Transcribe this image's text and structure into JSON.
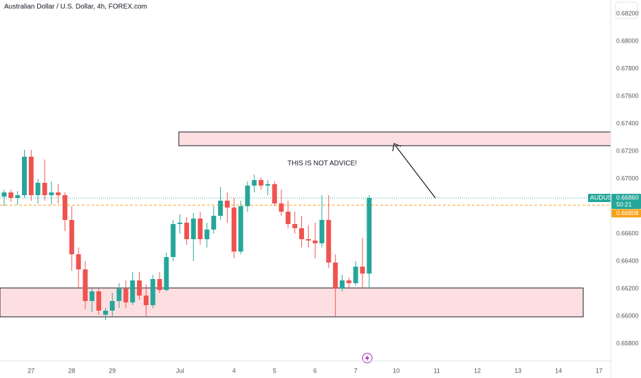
{
  "chart_data": {
    "type": "candlestick",
    "title": "Australian Dollar / U.S. Dollar, 4h, FOREX.com",
    "categories": [
      null,
      null,
      null,
      null,
      "27",
      null,
      null,
      null,
      null,
      null,
      "28",
      null,
      null,
      null,
      null,
      null,
      "29",
      null,
      null,
      null,
      null,
      null,
      null,
      null,
      null,
      null,
      "Jul",
      null,
      null,
      null,
      null,
      null,
      null,
      null,
      "4",
      null,
      null,
      null,
      null,
      null,
      "5",
      null,
      null,
      null,
      null,
      null,
      "6",
      null,
      null,
      null,
      null,
      null,
      "7",
      null,
      null,
      null,
      null,
      null,
      "10",
      null,
      null,
      null,
      null,
      null,
      "11",
      null,
      null,
      null,
      null,
      null,
      "12",
      null,
      null,
      null,
      null,
      null,
      "13",
      null,
      null,
      null,
      null,
      null,
      "14",
      null,
      null,
      null,
      null,
      null,
      "17",
      null
    ],
    "series": [
      {
        "name": "AUDUSD",
        "up_color": "#26a69a",
        "down_color": "#ef5350",
        "open": [
          0.6687,
          0.669,
          0.6686,
          0.6688,
          0.6716,
          0.6688,
          0.6697,
          0.6688,
          0.669,
          0.6688,
          0.667,
          0.6645,
          0.6634,
          0.6611,
          0.6618,
          0.6601,
          0.6604,
          0.6611,
          0.662,
          0.661,
          0.6626,
          0.6615,
          0.6608,
          0.6627,
          0.6619,
          0.6643,
          0.6667,
          0.6668,
          0.6656,
          0.6671,
          0.6656,
          0.6663,
          0.6673,
          0.6684,
          0.6679,
          0.6647,
          0.668,
          0.6695,
          0.6699,
          0.6695,
          0.6696,
          0.6682,
          0.6676,
          0.6667,
          0.6664,
          0.6656,
          0.6655,
          0.6653,
          0.667,
          0.6639,
          0.662,
          0.6626,
          0.6624,
          0.6636,
          0.6631,
          null,
          null,
          null,
          null,
          null,
          null,
          null,
          null,
          null,
          null,
          null,
          null,
          null,
          null,
          null,
          null,
          null,
          null,
          null,
          null,
          null,
          null,
          null,
          null,
          null,
          null,
          null,
          null,
          null,
          null,
          null,
          null,
          null,
          null,
          null
        ],
        "high": [
          0.6692,
          0.6692,
          0.6691,
          0.6721,
          0.6721,
          0.67,
          0.6714,
          0.6698,
          0.6696,
          0.669,
          0.668,
          0.665,
          0.664,
          0.662,
          0.662,
          0.6606,
          0.6617,
          0.6624,
          0.6626,
          0.6632,
          0.6632,
          0.6623,
          0.663,
          0.6632,
          0.6646,
          0.667,
          0.6674,
          0.6672,
          0.6675,
          0.6676,
          0.6668,
          0.668,
          0.6694,
          0.669,
          0.6686,
          0.6684,
          0.6698,
          0.6703,
          0.6701,
          0.6699,
          0.6698,
          0.6692,
          0.6684,
          0.6676,
          0.6673,
          0.6666,
          0.6668,
          0.6688,
          0.6688,
          0.6645,
          0.663,
          0.6628,
          0.664,
          0.6657,
          0.6688,
          null,
          null,
          null,
          null,
          null,
          null,
          null,
          null,
          null,
          null,
          null,
          null,
          null,
          null,
          null,
          null,
          null,
          null,
          null,
          null,
          null,
          null,
          null,
          null,
          null,
          null,
          null,
          null,
          null,
          null,
          null,
          null,
          null,
          null,
          null
        ],
        "low": [
          0.668,
          0.6683,
          0.6681,
          0.6686,
          0.6684,
          0.6682,
          0.6684,
          0.6681,
          0.6682,
          0.6662,
          0.6633,
          0.662,
          0.6605,
          0.6603,
          0.6601,
          0.6597,
          0.66,
          0.6606,
          0.6606,
          0.6608,
          0.6612,
          0.66,
          0.6606,
          0.6617,
          0.6618,
          0.664,
          0.666,
          0.6652,
          0.664,
          0.6652,
          0.665,
          0.666,
          0.667,
          0.6668,
          0.6642,
          0.6645,
          0.6676,
          0.669,
          0.6692,
          0.6688,
          0.668,
          0.6673,
          0.6664,
          0.666,
          0.665,
          0.665,
          0.6642,
          0.665,
          0.6635,
          0.66,
          0.6618,
          0.662,
          0.6622,
          0.662,
          0.662,
          null,
          null,
          null,
          null,
          null,
          null,
          null,
          null,
          null,
          null,
          null,
          null,
          null,
          null,
          null,
          null,
          null,
          null,
          null,
          null,
          null,
          null,
          null,
          null,
          null,
          null,
          null,
          null,
          null,
          null,
          null,
          null,
          null,
          null,
          null
        ],
        "close": [
          0.669,
          0.6686,
          0.6688,
          0.6716,
          0.6688,
          0.6697,
          0.6688,
          0.669,
          0.6688,
          0.667,
          0.6645,
          0.6634,
          0.6611,
          0.6618,
          0.6604,
          0.6604,
          0.6611,
          0.662,
          0.661,
          0.6626,
          0.6615,
          0.6608,
          0.6627,
          0.6619,
          0.6643,
          0.6667,
          0.6668,
          0.6656,
          0.6671,
          0.6656,
          0.6663,
          0.6673,
          0.6684,
          0.6679,
          0.6647,
          0.668,
          0.6695,
          0.6699,
          0.6695,
          0.6696,
          0.6682,
          0.6676,
          0.6667,
          0.6664,
          0.6656,
          0.6655,
          0.6653,
          0.667,
          0.6639,
          0.662,
          0.6626,
          0.6624,
          0.6636,
          0.6631,
          0.6686,
          null,
          null,
          null,
          null,
          null,
          null,
          null,
          null,
          null,
          null,
          null,
          null,
          null,
          null,
          null,
          null,
          null,
          null,
          null,
          null,
          null,
          null,
          null,
          null,
          null,
          null,
          null,
          null,
          null,
          null,
          null,
          null,
          null,
          null,
          null
        ]
      }
    ],
    "ylim": [
      0.65675,
      0.683
    ],
    "yticks": [
      {
        "value": 0.658,
        "label": "0.65800"
      },
      {
        "value": 0.66,
        "label": "0.66000"
      },
      {
        "value": 0.662,
        "label": "0.66200"
      },
      {
        "value": 0.664,
        "label": "0.66400"
      },
      {
        "value": 0.666,
        "label": "0.66600"
      },
      {
        "value": 0.668,
        "label": "0.66800"
      },
      {
        "value": 0.67,
        "label": "0.67000"
      },
      {
        "value": 0.672,
        "label": "0.67200"
      },
      {
        "value": 0.674,
        "label": "0.67400"
      },
      {
        "value": 0.676,
        "label": "0.67600"
      },
      {
        "value": 0.678,
        "label": "0.67800"
      },
      {
        "value": 0.68,
        "label": "0.68000"
      },
      {
        "value": 0.682,
        "label": "0.68200"
      }
    ],
    "last_price": {
      "value": 0.6686,
      "label": "0.66860",
      "color": "#26a69a"
    },
    "countdown": "50:21",
    "previous_close": {
      "value": 0.66808,
      "label": "0.66808",
      "color": "#f7a21b"
    },
    "zones": [
      {
        "low": 0.6724,
        "high": 0.6734
      },
      {
        "low": 0.65995,
        "high": 0.66205
      }
    ],
    "annotation": "THIS IS NOT ADVICE!"
  }
}
